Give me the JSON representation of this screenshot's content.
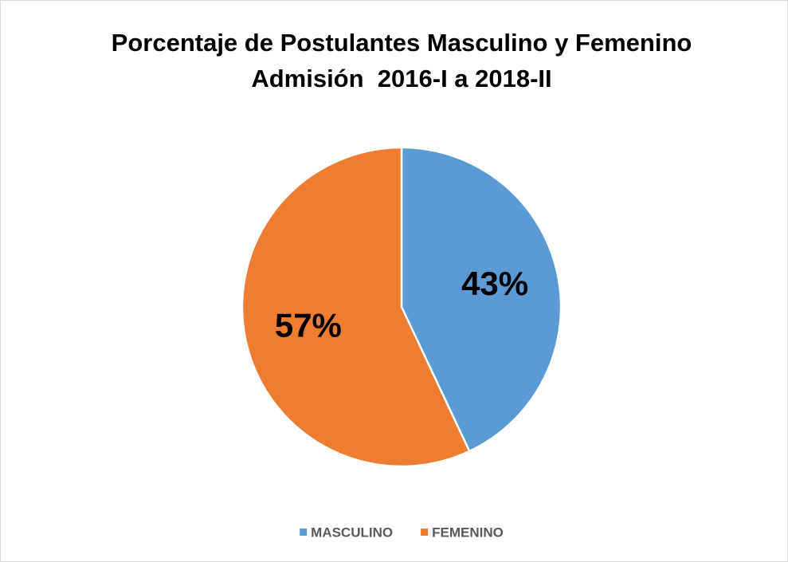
{
  "chart_data": {
    "type": "pie",
    "title": [
      "Porcentaje de Postulantes Masculino y Femenino",
      "Admisión  2016-I a 2018-II"
    ],
    "categories": [
      "MASCULINO",
      "FEMENINO"
    ],
    "values": [
      43,
      57
    ],
    "value_labels": [
      "43%",
      "57%"
    ],
    "colors": [
      "#5b9bd5",
      "#ed7d31"
    ],
    "legend": "bottom"
  }
}
